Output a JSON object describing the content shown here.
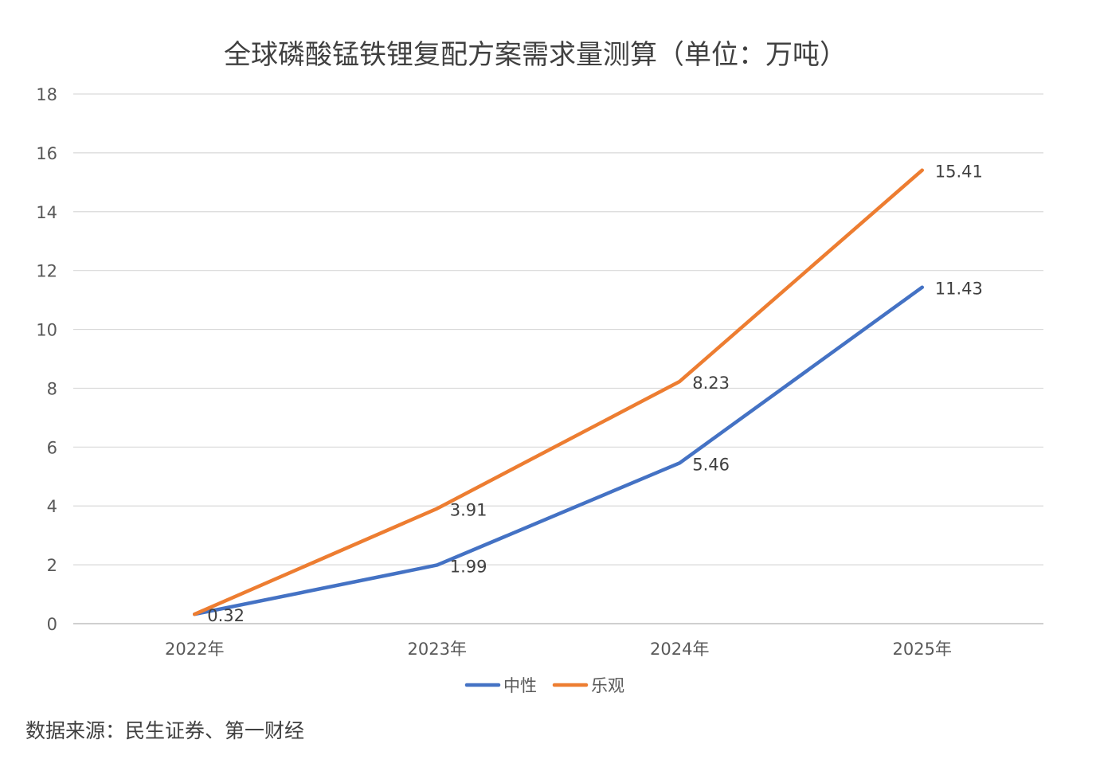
{
  "source_note": "数据来源：民生证券、第一财经",
  "chart_data": {
    "type": "line",
    "title": "全球磷酸锰铁锂复配方案需求量测算（单位：万吨）",
    "xlabel": "",
    "ylabel": "",
    "categories": [
      "2022年",
      "2023年",
      "2024年",
      "2025年"
    ],
    "ylim": [
      0,
      18
    ],
    "yticks": [
      0,
      2,
      4,
      6,
      8,
      10,
      12,
      14,
      16,
      18
    ],
    "grid": true,
    "legend_position": "bottom",
    "series": [
      {
        "name": "中性",
        "color": "#4472C4",
        "values": [
          0.32,
          1.99,
          5.46,
          11.43
        ],
        "labels": [
          "0.32",
          "1.99",
          "5.46",
          "11.43"
        ]
      },
      {
        "name": "乐观",
        "color": "#ED7D31",
        "values": [
          0.32,
          3.91,
          8.23,
          15.41
        ],
        "labels": [
          "",
          "3.91",
          "8.23",
          "15.41"
        ]
      }
    ]
  }
}
